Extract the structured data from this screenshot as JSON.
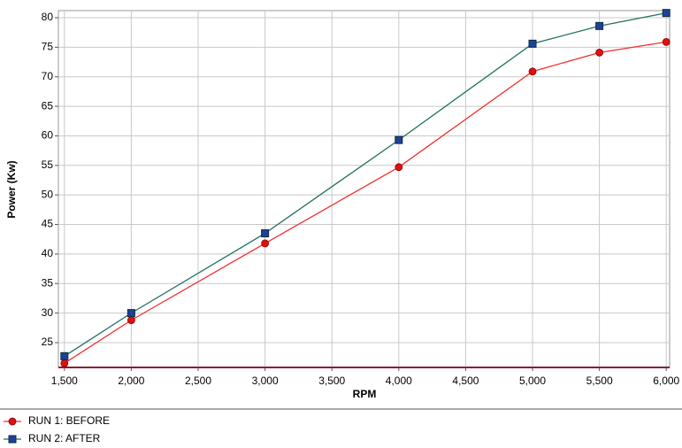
{
  "chart_data": {
    "type": "line",
    "x_label": "RPM",
    "y_label": "Power (Kw)",
    "xlim": [
      1455,
      6025
    ],
    "ylim": [
      20.8,
      81.2
    ],
    "xticks": [
      {
        "value": 1500,
        "label": "1,500"
      },
      {
        "value": 2000,
        "label": "2,000"
      },
      {
        "value": 2500,
        "label": "2,500"
      },
      {
        "value": 3000,
        "label": "3,000"
      },
      {
        "value": 3500,
        "label": "3,500"
      },
      {
        "value": 4000,
        "label": "4,000"
      },
      {
        "value": 4500,
        "label": "4,500"
      },
      {
        "value": 5000,
        "label": "5,000"
      },
      {
        "value": 5500,
        "label": "5,500"
      },
      {
        "value": 6000,
        "label": "6,000"
      }
    ],
    "yticks": [
      25,
      30,
      35,
      40,
      45,
      50,
      55,
      60,
      65,
      70,
      75,
      80
    ],
    "grid": true,
    "legend": "bottom-left",
    "x": [
      1500,
      2000,
      3000,
      4000,
      5000,
      5500,
      6000
    ],
    "series": [
      {
        "name": "RUN 1: BEFORE",
        "color": "#f03030",
        "marker_color": "#e01010",
        "marker": "circle",
        "values": [
          21.5,
          28.8,
          41.8,
          54.7,
          70.9,
          74.1,
          75.9
        ]
      },
      {
        "name": "RUN 2: AFTER",
        "color": "#1f7060",
        "marker_color": "#1f3f9f",
        "marker": "square",
        "values": [
          22.7,
          30.0,
          43.5,
          59.3,
          75.6,
          78.6,
          80.8
        ]
      }
    ]
  }
}
